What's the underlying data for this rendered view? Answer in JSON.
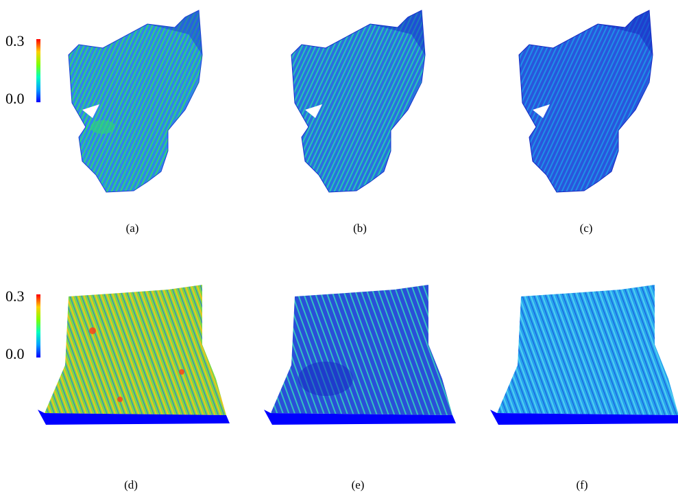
{
  "figure": {
    "rows": [
      {
        "colorbar": {
          "max_label": "0.3",
          "min_label": "0.0",
          "colors": [
            "#0000ff",
            "#00a0ff",
            "#00ffc0",
            "#80ff00",
            "#ffd000",
            "#ff0000"
          ]
        },
        "panels": [
          {
            "caption": "(a)",
            "shape": "cat",
            "base_color": "#2f86e8",
            "stripe_color": "#2fd67a",
            "patch_color": "#1a3fd0"
          },
          {
            "caption": "(b)",
            "shape": "cat",
            "base_color": "#2a6fe0",
            "stripe_color": "#27c7b5",
            "patch_color": "#1230c8"
          },
          {
            "caption": "(c)",
            "shape": "cat",
            "base_color": "#2a55dc",
            "stripe_color": "#1f8fe8",
            "patch_color": "#1428c0"
          }
        ]
      },
      {
        "colorbar": {
          "max_label": "0.3",
          "min_label": "0.0",
          "colors": [
            "#0000ff",
            "#00a0ff",
            "#00ffc0",
            "#80ff00",
            "#ffd000",
            "#ff0000"
          ]
        },
        "panels": [
          {
            "caption": "(d)",
            "shape": "terrain",
            "base_color": "#7ad84a",
            "stripe_color": "#f2c21d",
            "patch_color": "#2b6fe0"
          },
          {
            "caption": "(e)",
            "shape": "terrain",
            "base_color": "#2a4fd8",
            "stripe_color": "#33c1c0",
            "patch_color": "#1428c0"
          },
          {
            "caption": "(f)",
            "shape": "terrain",
            "base_color": "#27a2ee",
            "stripe_color": "#4fd0f0",
            "patch_color": "#1a55d8"
          }
        ]
      }
    ]
  }
}
